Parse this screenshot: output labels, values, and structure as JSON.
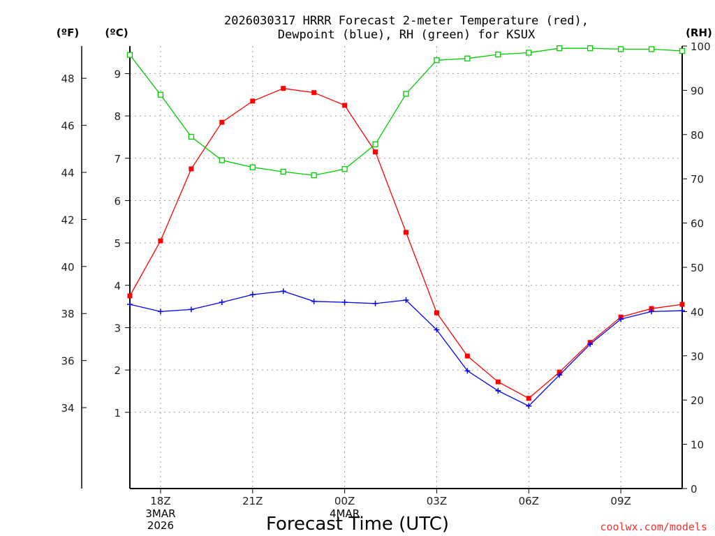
{
  "chart_data": {
    "type": "line",
    "title_line1": "2026030317 HRRR Forecast 2-meter Temperature (red),",
    "title_line2": "Dewpoint (blue), RH (green) for KSUX",
    "xlabel": "Forecast Time (UTC)",
    "credit": "coolwx.com/models",
    "left_unit_f": "(ºF)",
    "left_unit_c": "(ºC)",
    "right_unit": "(RH)",
    "hours": [
      17,
      18,
      19,
      20,
      21,
      22,
      23,
      24,
      25,
      26,
      27,
      28,
      29,
      30,
      31,
      32,
      33,
      34,
      35
    ],
    "x_ticks": [
      {
        "hour": 18,
        "label": "18Z"
      },
      {
        "hour": 21,
        "label": "21Z"
      },
      {
        "hour": 24,
        "label": "00Z"
      },
      {
        "hour": 27,
        "label": "03Z"
      },
      {
        "hour": 30,
        "label": "06Z"
      },
      {
        "hour": 33,
        "label": "09Z"
      }
    ],
    "date_labels": [
      {
        "hour": 18,
        "lines": [
          "3MAR",
          "2026"
        ]
      },
      {
        "hour": 24,
        "lines": [
          "4MAR"
        ]
      }
    ],
    "celsius_ticks": [
      1,
      2,
      3,
      4,
      5,
      6,
      7,
      8,
      9
    ],
    "fahrenheit_ticks": [
      34,
      36,
      38,
      40,
      42,
      44,
      46,
      48
    ],
    "rh_ticks": [
      0,
      10,
      20,
      30,
      40,
      50,
      60,
      70,
      80,
      90,
      100
    ],
    "ylim_celsius": [
      -0.8,
      9.65
    ],
    "ylim_rh": [
      0,
      100
    ],
    "series": [
      {
        "name": "Temperature",
        "unit": "C",
        "color": "#ff0000",
        "marker": "filled-square",
        "values": [
          3.75,
          5.05,
          6.75,
          7.85,
          8.35,
          8.65,
          8.55,
          8.25,
          7.15,
          5.25,
          3.35,
          2.33,
          1.72,
          1.33,
          1.95,
          2.65,
          3.25,
          3.45,
          3.55
        ]
      },
      {
        "name": "Dewpoint",
        "unit": "C",
        "color": "#0000ff",
        "marker": "plus",
        "values": [
          3.55,
          3.38,
          3.43,
          3.6,
          3.78,
          3.86,
          3.62,
          3.6,
          3.57,
          3.65,
          2.95,
          1.98,
          1.51,
          1.15,
          1.88,
          2.61,
          3.2,
          3.38,
          3.4
        ]
      },
      {
        "name": "RH",
        "unit": "%",
        "color": "#00cc00",
        "marker": "open-square",
        "values": [
          98,
          89,
          79.5,
          74.2,
          72.6,
          71.6,
          70.8,
          72.2,
          77.8,
          89.2,
          96.8,
          97.2,
          98.1,
          98.5,
          99.5,
          99.5,
          99.3,
          99.3,
          98.9
        ]
      }
    ]
  }
}
